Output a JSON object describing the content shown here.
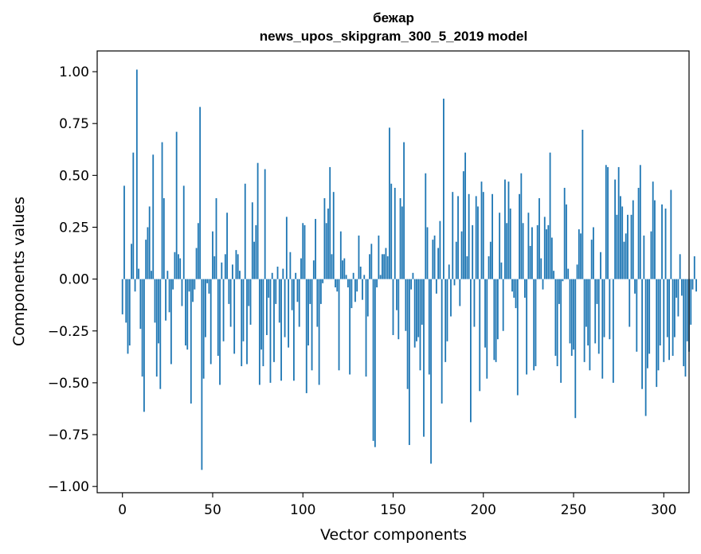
{
  "chart_data": {
    "type": "bar",
    "title": "бежар",
    "subtitle": "news_upos_skipgram_300_5_2019 model",
    "xlabel": "Vector components",
    "ylabel": "Components values",
    "xlim": [
      -14,
      314
    ],
    "ylim": [
      -1.03,
      1.1
    ],
    "xticks": [
      0,
      50,
      100,
      150,
      200,
      250,
      300
    ],
    "yticks": [
      -1.0,
      -0.75,
      -0.5,
      -0.25,
      0.0,
      0.25,
      0.5,
      0.75,
      1.0
    ],
    "xtick_labels": [
      "0",
      "50",
      "100",
      "150",
      "200",
      "250",
      "300"
    ],
    "ytick_labels": [
      "−1.00",
      "−0.75",
      "−0.50",
      "−0.25",
      "0.00",
      "0.25",
      "0.50",
      "0.75",
      "1.00"
    ],
    "bar_color": "#1f77b4",
    "values": [
      -0.17,
      0.45,
      -0.21,
      -0.36,
      -0.32,
      0.17,
      0.61,
      -0.06,
      1.01,
      0.05,
      -0.24,
      -0.47,
      -0.64,
      0.19,
      0.25,
      0.35,
      0.04,
      0.6,
      -0.21,
      -0.47,
      -0.31,
      -0.53,
      0.66,
      0.39,
      -0.2,
      0.04,
      -0.16,
      -0.41,
      -0.05,
      0.13,
      0.71,
      0.12,
      0.1,
      -0.13,
      0.45,
      -0.32,
      -0.34,
      -0.06,
      -0.6,
      -0.11,
      -0.05,
      0.15,
      0.27,
      0.83,
      -0.92,
      -0.48,
      -0.28,
      -0.02,
      -0.07,
      -0.41,
      0.23,
      0.11,
      0.39,
      -0.37,
      -0.51,
      0.08,
      -0.3,
      0.12,
      0.32,
      -0.12,
      -0.23,
      0.07,
      -0.36,
      0.14,
      0.12,
      0.04,
      -0.42,
      -0.3,
      0.46,
      -0.41,
      -0.13,
      -0.22,
      0.37,
      0.18,
      0.26,
      0.56,
      -0.51,
      -0.34,
      -0.42,
      0.53,
      -0.27,
      -0.09,
      -0.5,
      0.03,
      -0.4,
      -0.12,
      0.06,
      -0.21,
      -0.49,
      0.05,
      -0.28,
      0.3,
      -0.33,
      0.13,
      -0.15,
      -0.49,
      0.03,
      -0.11,
      -0.23,
      0.1,
      0.27,
      0.26,
      -0.55,
      -0.32,
      -0.12,
      -0.44,
      0.09,
      0.29,
      -0.23,
      -0.51,
      -0.12,
      -0.02,
      0.39,
      0.27,
      0.34,
      0.54,
      0.12,
      0.42,
      -0.04,
      -0.06,
      -0.44,
      0.23,
      0.09,
      0.1,
      0.02,
      -0.04,
      -0.46,
      -0.14,
      0.03,
      -0.11,
      -0.06,
      0.21,
      0.06,
      -0.1,
      0.02,
      -0.47,
      -0.18,
      0.12,
      0.17,
      -0.78,
      -0.81,
      -0.04,
      0.21,
      0.02,
      0.12,
      0.12,
      0.15,
      0.11,
      0.73,
      0.46,
      -0.27,
      0.44,
      -0.15,
      -0.29,
      0.39,
      0.35,
      0.66,
      -0.25,
      -0.53,
      -0.8,
      -0.05,
      0.03,
      -0.33,
      -0.3,
      -0.28,
      -0.44,
      -0.22,
      -0.76,
      0.51,
      0.25,
      -0.46,
      -0.89,
      0.19,
      0.21,
      -0.07,
      0.15,
      0.28,
      -0.6,
      0.87,
      -0.4,
      -0.3,
      0.07,
      -0.18,
      0.42,
      -0.03,
      0.18,
      0.4,
      -0.13,
      0.23,
      0.52,
      0.61,
      0.11,
      0.41,
      -0.69,
      0.26,
      -0.23,
      0.4,
      0.35,
      -0.54,
      0.47,
      0.42,
      -0.33,
      -0.48,
      0.11,
      0.18,
      0.41,
      -0.39,
      -0.4,
      -0.29,
      0.32,
      0.08,
      -0.25,
      0.48,
      0.27,
      0.47,
      0.34,
      -0.06,
      -0.09,
      -0.14,
      -0.56,
      0.41,
      0.51,
      0.27,
      -0.09,
      -0.46,
      0.32,
      0.16,
      0.25,
      -0.44,
      -0.42,
      0.26,
      0.39,
      0.1,
      -0.05,
      0.3,
      0.24,
      0.26,
      0.61,
      0.2,
      0.04,
      -0.37,
      -0.42,
      -0.12,
      -0.5,
      -0.01,
      0.44,
      0.36,
      0.05,
      -0.31,
      -0.37,
      -0.34,
      -0.67,
      0.07,
      0.24,
      0.22,
      0.72,
      -0.4,
      -0.23,
      -0.32,
      -0.44,
      0.19,
      0.25,
      -0.31,
      -0.12,
      -0.36,
      0.13,
      -0.48,
      -0.28,
      0.55,
      0.54,
      -0.29,
      0.0,
      -0.5,
      0.48,
      0.31,
      0.54,
      0.4,
      0.35,
      0.18,
      0.22,
      0.31,
      -0.23,
      0.31,
      0.38,
      -0.07,
      -0.35,
      0.44,
      0.55,
      -0.53,
      0.21,
      -0.66,
      -0.43,
      -0.36,
      0.23,
      0.47,
      0.38,
      -0.52,
      -0.44,
      -0.32,
      0.36,
      -0.4,
      0.34,
      -0.28,
      -0.39,
      0.43,
      -0.37,
      -0.28,
      -0.09,
      -0.18,
      0.12,
      -0.08,
      -0.42,
      -0.47,
      -0.3,
      -0.35,
      -0.22,
      -0.05,
      0.11,
      -0.06
    ]
  }
}
